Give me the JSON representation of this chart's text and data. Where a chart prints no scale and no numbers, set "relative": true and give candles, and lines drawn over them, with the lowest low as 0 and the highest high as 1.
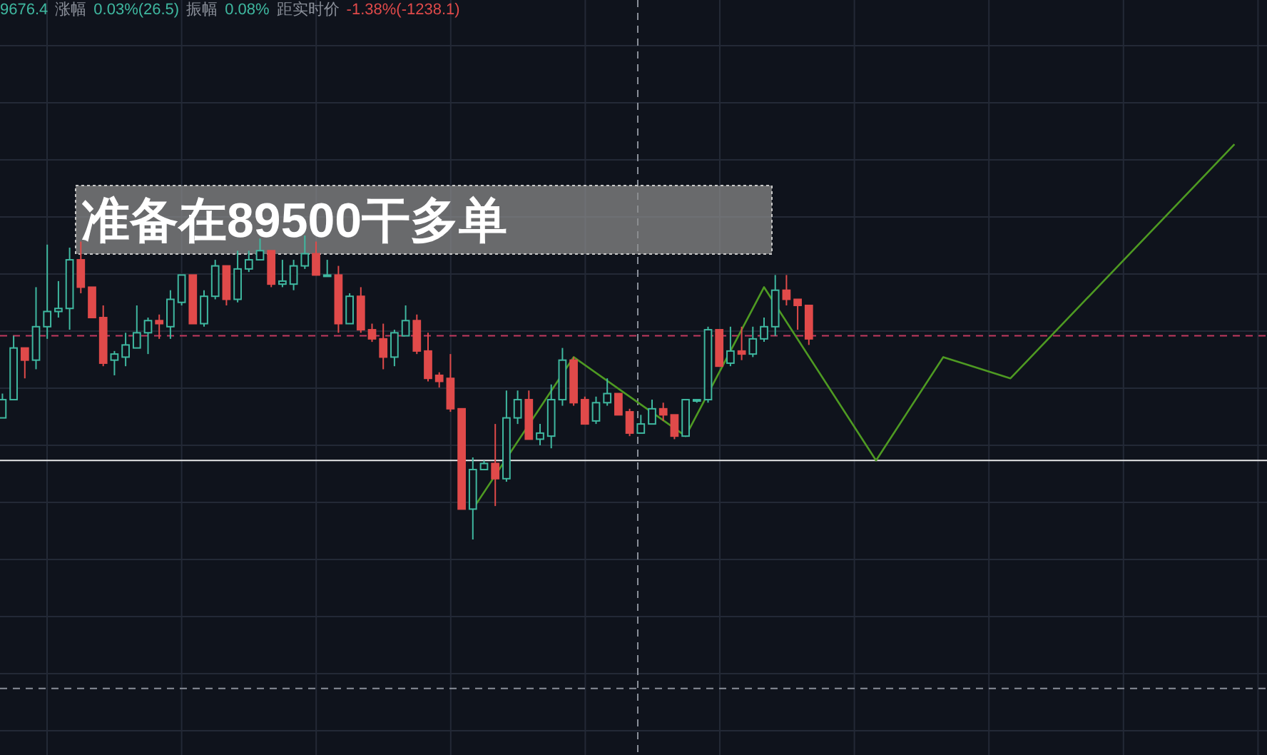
{
  "chart_data": {
    "type": "candlestick",
    "relative": true,
    "grid": true,
    "categories": [
      null,
      null,
      null,
      null,
      null,
      null,
      null,
      null,
      null,
      null,
      null,
      null,
      null,
      null,
      null,
      null,
      null,
      null,
      null,
      null,
      null,
      null,
      null,
      null,
      null,
      null,
      null,
      null,
      null,
      null,
      null,
      null,
      null,
      null,
      null,
      null,
      null,
      null,
      null,
      null,
      null,
      null,
      null,
      null,
      null,
      null,
      null,
      null,
      null,
      null,
      null,
      null,
      null,
      null,
      null,
      null,
      null,
      null,
      null,
      null,
      null,
      null,
      null,
      null,
      null,
      null,
      null,
      null,
      null,
      null,
      null,
      null,
      null,
      null,
      null,
      null,
      null,
      null,
      null,
      null,
      null,
      null,
      null,
      null,
      null,
      null,
      null,
      null,
      null,
      null,
      null,
      null,
      null,
      null,
      null,
      null,
      null,
      null,
      null,
      null,
      null,
      null,
      null,
      null,
      null,
      null,
      null,
      null,
      null,
      null,
      null
    ],
    "colors": [
      "#3fb8a0",
      "#3fb8a0",
      "#e04a4a",
      "#3fb8a0",
      "#3fb8a0",
      "#3fb8a0",
      "#3fb8a0",
      "#e04a4a",
      "#e04a4a",
      "#e04a4a",
      "#3fb8a0",
      "#3fb8a0",
      "#3fb8a0",
      "#3fb8a0",
      "#e04a4a",
      "#3fb8a0",
      "#3fb8a0",
      "#e04a4a",
      "#3fb8a0",
      "#3fb8a0",
      "#e04a4a",
      "#3fb8a0",
      "#3fb8a0",
      "#3fb8a0",
      "#e04a4a",
      "#3fb8a0",
      "#3fb8a0",
      "#3fb8a0",
      "#e04a4a",
      "#3fb8a0",
      "#e04a4a",
      "#3fb8a0",
      "#e04a4a",
      "#e04a4a",
      "#e04a4a",
      "#3fb8a0",
      "#3fb8a0",
      "#e04a4a",
      "#e04a4a",
      "#e04a4a",
      "#e04a4a",
      "#e04a4a",
      "#3fb8a0",
      "#3fb8a0",
      "#e04a4a",
      "#3fb8a0",
      "#3fb8a0",
      "#e04a4a",
      "#3fb8a0",
      "#3fb8a0",
      "#3fb8a0",
      "#e04a4a",
      "#e04a4a",
      "#3fb8a0",
      "#3fb8a0",
      "#e04a4a",
      "#e04a4a",
      "#3fb8a0",
      "#3fb8a0",
      "#e04a4a",
      "#e04a4a",
      "#3fb8a0",
      "#3fb8a0",
      "#3fb8a0",
      "#e04a4a",
      "#3fb8a0",
      "#e04a4a",
      "#3fb8a0",
      "#3fb8a0",
      "#3fb8a0",
      "#e04a4a",
      "#e04a4a",
      "#e04a4a",
      null,
      null,
      null,
      null,
      null,
      null,
      null,
      null,
      null,
      null,
      null,
      null,
      null,
      null,
      null,
      null,
      null,
      null,
      null,
      null,
      null,
      null,
      null,
      null,
      null,
      null,
      null,
      null,
      null,
      null,
      null,
      null,
      null,
      null,
      null,
      null,
      null,
      null
    ],
    "ohlc": [
      [
        0.4,
        0.48,
        0.4,
        0.46
      ],
      [
        0.46,
        0.67,
        0.46,
        0.63
      ],
      [
        0.63,
        0.63,
        0.53,
        0.59
      ],
      [
        0.59,
        0.83,
        0.56,
        0.7
      ],
      [
        0.7,
        0.97,
        0.66,
        0.75
      ],
      [
        0.75,
        0.85,
        0.73,
        0.76
      ],
      [
        0.76,
        0.96,
        0.69,
        0.92
      ],
      [
        0.92,
        0.98,
        0.81,
        0.83
      ],
      [
        0.83,
        0.83,
        0.73,
        0.73
      ],
      [
        0.73,
        0.77,
        0.57,
        0.58
      ],
      [
        0.59,
        0.62,
        0.54,
        0.61
      ],
      [
        0.6,
        0.68,
        0.57,
        0.64
      ],
      [
        0.63,
        0.77,
        0.63,
        0.68
      ],
      [
        0.68,
        0.73,
        0.61,
        0.72
      ],
      [
        0.72,
        0.74,
        0.66,
        0.71
      ],
      [
        0.7,
        0.82,
        0.66,
        0.79
      ],
      [
        0.78,
        0.87,
        0.77,
        0.87
      ],
      [
        0.87,
        0.87,
        0.71,
        0.71
      ],
      [
        0.71,
        0.82,
        0.7,
        0.8
      ],
      [
        0.8,
        0.92,
        0.79,
        0.9
      ],
      [
        0.9,
        0.9,
        0.77,
        0.79
      ],
      [
        0.79,
        0.95,
        0.78,
        0.89
      ],
      [
        0.89,
        0.95,
        0.88,
        0.92
      ],
      [
        0.92,
        0.99,
        0.92,
        0.95
      ],
      [
        0.95,
        0.95,
        0.83,
        0.84
      ],
      [
        0.84,
        0.92,
        0.83,
        0.85
      ],
      [
        0.84,
        0.92,
        0.82,
        0.9
      ],
      [
        0.9,
        1.0,
        0.89,
        0.94
      ],
      [
        0.94,
        0.98,
        0.87,
        0.87
      ],
      [
        0.87,
        0.92,
        0.87,
        0.87
      ],
      [
        0.87,
        0.9,
        0.68,
        0.71
      ],
      [
        0.71,
        0.81,
        0.71,
        0.8
      ],
      [
        0.8,
        0.83,
        0.68,
        0.69
      ],
      [
        0.69,
        0.71,
        0.65,
        0.66
      ],
      [
        0.66,
        0.71,
        0.56,
        0.6
      ],
      [
        0.6,
        0.69,
        0.57,
        0.68
      ],
      [
        0.67,
        0.77,
        0.67,
        0.72
      ],
      [
        0.72,
        0.74,
        0.61,
        0.62
      ],
      [
        0.62,
        0.68,
        0.52,
        0.53
      ],
      [
        0.54,
        0.55,
        0.5,
        0.52
      ],
      [
        0.53,
        0.61,
        0.42,
        0.43
      ],
      [
        0.43,
        0.43,
        0.1,
        0.1
      ],
      [
        0.1,
        0.27,
        0.0,
        0.23
      ],
      [
        0.23,
        0.26,
        0.23,
        0.25
      ],
      [
        0.25,
        0.38,
        0.11,
        0.2
      ],
      [
        0.2,
        0.49,
        0.19,
        0.4
      ],
      [
        0.4,
        0.49,
        0.38,
        0.46
      ],
      [
        0.46,
        0.49,
        0.33,
        0.33
      ],
      [
        0.33,
        0.38,
        0.31,
        0.35
      ],
      [
        0.34,
        0.51,
        0.3,
        0.46
      ],
      [
        0.46,
        0.63,
        0.44,
        0.59
      ],
      [
        0.59,
        0.6,
        0.44,
        0.45
      ],
      [
        0.46,
        0.47,
        0.38,
        0.38
      ],
      [
        0.39,
        0.47,
        0.38,
        0.45
      ],
      [
        0.45,
        0.53,
        0.44,
        0.48
      ],
      [
        0.48,
        0.48,
        0.41,
        0.41
      ],
      [
        0.42,
        0.43,
        0.34,
        0.35
      ],
      [
        0.35,
        0.41,
        0.35,
        0.38
      ],
      [
        0.38,
        0.46,
        0.38,
        0.43
      ],
      [
        0.43,
        0.45,
        0.39,
        0.41
      ],
      [
        0.41,
        0.41,
        0.33,
        0.34
      ],
      [
        0.34,
        0.46,
        0.34,
        0.46
      ],
      [
        0.46,
        0.46,
        0.45,
        0.46
      ],
      [
        0.46,
        0.7,
        0.45,
        0.69
      ],
      [
        0.69,
        0.69,
        0.57,
        0.57
      ],
      [
        0.58,
        0.7,
        0.57,
        0.62
      ],
      [
        0.62,
        0.7,
        0.59,
        0.61
      ],
      [
        0.61,
        0.7,
        0.6,
        0.66
      ],
      [
        0.66,
        0.73,
        0.65,
        0.7
      ],
      [
        0.7,
        0.87,
        0.67,
        0.82
      ],
      [
        0.82,
        0.87,
        0.77,
        0.79
      ],
      [
        0.79,
        0.79,
        0.69,
        0.77
      ],
      [
        0.77,
        0.77,
        0.64,
        0.66
      ],
      null,
      null,
      null,
      null,
      null,
      null,
      null,
      null,
      null,
      null,
      null,
      null,
      null,
      null,
      null,
      null,
      null,
      null,
      null,
      null,
      null,
      null,
      null,
      null,
      null,
      null,
      null,
      null,
      null,
      null,
      null,
      null,
      null,
      null,
      null,
      null,
      null,
      null
    ],
    "series": [
      {
        "type": "line",
        "color": "#4e9a22",
        "values": [
          null,
          null,
          null,
          null,
          null,
          null,
          null,
          null,
          null,
          null,
          null,
          null,
          null,
          null,
          null,
          null,
          null,
          null,
          null,
          null,
          null,
          null,
          null,
          null,
          null,
          null,
          null,
          null,
          null,
          null,
          null,
          null,
          null,
          null,
          null,
          null,
          null,
          null,
          null,
          null,
          null,
          null,
          0.1,
          null,
          null,
          null,
          null,
          null,
          null,
          null,
          null,
          0.6,
          null,
          null,
          null,
          null,
          null,
          null,
          null,
          null,
          null,
          0.34,
          null,
          null,
          null,
          null,
          null,
          null,
          0.83,
          null,
          null,
          null,
          null,
          null,
          null,
          null,
          null,
          null,
          0.26,
          null,
          null,
          null,
          null,
          null,
          0.6,
          null,
          null,
          null,
          null,
          null,
          0.53,
          null,
          null,
          null,
          null,
          null,
          null,
          null,
          null,
          null,
          null,
          null,
          null,
          null,
          null,
          null,
          null,
          null,
          null,
          null,
          1.3
        ]
      }
    ],
    "ref_lines": [
      {
        "axis": "y",
        "value": 0.26,
        "color": "#e8e8e8",
        "line_style": "solid"
      },
      {
        "axis": "y",
        "value": 0.67,
        "color": "#c2395f",
        "line_style": "dashed"
      },
      {
        "axis": "y",
        "value": -0.49,
        "color": "#8a8f99",
        "line_style": "dashed"
      }
    ],
    "annotations": [
      "9676.4",
      "涨幅",
      "0.03%(26.5)",
      "振幅",
      "0.08%",
      "距实时价",
      "-1.38%(-1238.1)",
      "准备在89500干多单"
    ]
  }
}
